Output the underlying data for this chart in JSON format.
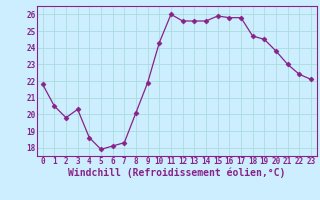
{
  "x": [
    0,
    1,
    2,
    3,
    4,
    5,
    6,
    7,
    8,
    9,
    10,
    11,
    12,
    13,
    14,
    15,
    16,
    17,
    18,
    19,
    20,
    21,
    22,
    23
  ],
  "y": [
    21.8,
    20.5,
    19.8,
    20.3,
    18.6,
    17.9,
    18.1,
    18.3,
    20.1,
    21.9,
    24.3,
    26.0,
    25.6,
    25.6,
    25.6,
    25.9,
    25.8,
    25.8,
    24.7,
    24.5,
    23.8,
    23.0,
    22.4,
    22.1
  ],
  "line_color": "#882288",
  "marker": "D",
  "marker_size": 2.5,
  "bg_color": "#cceeff",
  "grid_color": "#aadddd",
  "xlabel": "Windchill (Refroidissement éolien,°C)",
  "xlabel_color": "#882288",
  "ylim": [
    17.5,
    26.5
  ],
  "xlim": [
    -0.5,
    23.5
  ],
  "yticks": [
    18,
    19,
    20,
    21,
    22,
    23,
    24,
    25,
    26
  ],
  "xticks": [
    0,
    1,
    2,
    3,
    4,
    5,
    6,
    7,
    8,
    9,
    10,
    11,
    12,
    13,
    14,
    15,
    16,
    17,
    18,
    19,
    20,
    21,
    22,
    23
  ],
  "tick_color": "#882288",
  "tick_fontsize": 5.5,
  "xlabel_fontsize": 7.0,
  "spine_color": "#882288"
}
